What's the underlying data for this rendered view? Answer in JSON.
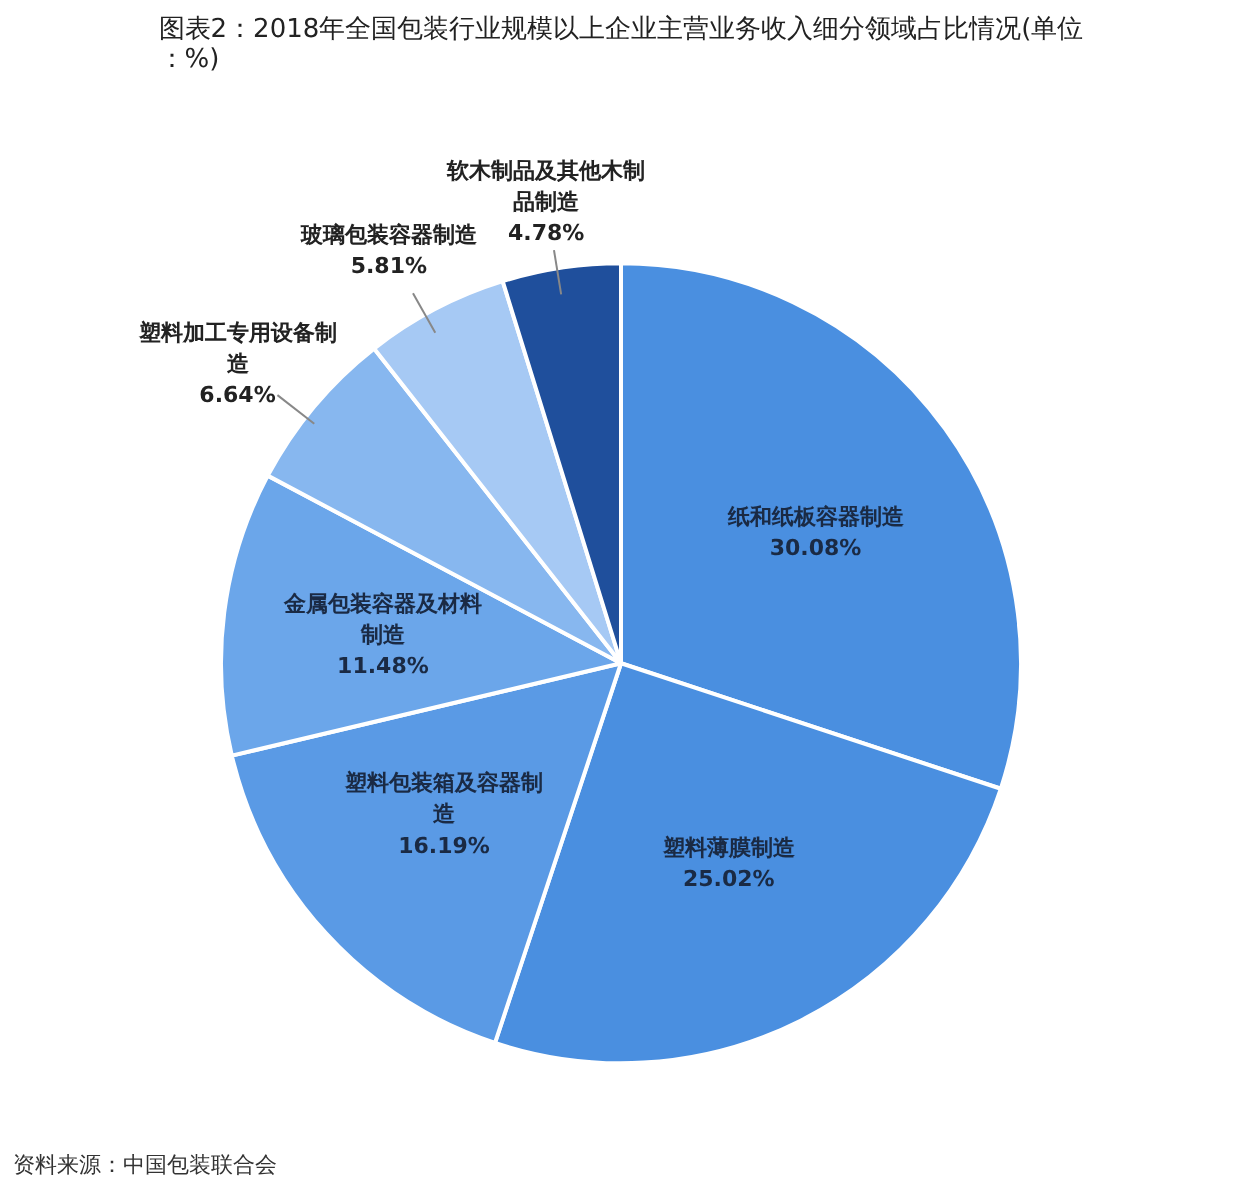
{
  "chart_data": {
    "type": "pie",
    "title": "图表2：2018年全国包装行业规模以上企业主营业务收入细分领域占比情况(单位：%)",
    "categories": [
      "纸和纸板容器制造",
      "塑料薄膜制造",
      "塑料包装箱及容器制造",
      "金属包装容器及材料制造",
      "塑料加工专用设备制造",
      "玻璃包装容器制造",
      "软木制品及其他木制品制造"
    ],
    "values": [
      30.08,
      25.02,
      16.19,
      11.48,
      6.64,
      5.81,
      4.78
    ],
    "colors": [
      "#4a8fe0",
      "#4a8fe0",
      "#5a9ae5",
      "#6ba6ea",
      "#87b7ef",
      "#a6c9f4",
      "#1f4f9c"
    ],
    "value_labels": [
      "30.08%",
      "25.02%",
      "16.19%",
      "11.48%",
      "6.64%",
      "5.81%",
      "4.78%"
    ],
    "annotations": [
      "资料来源：中国包装联合会"
    ]
  }
}
